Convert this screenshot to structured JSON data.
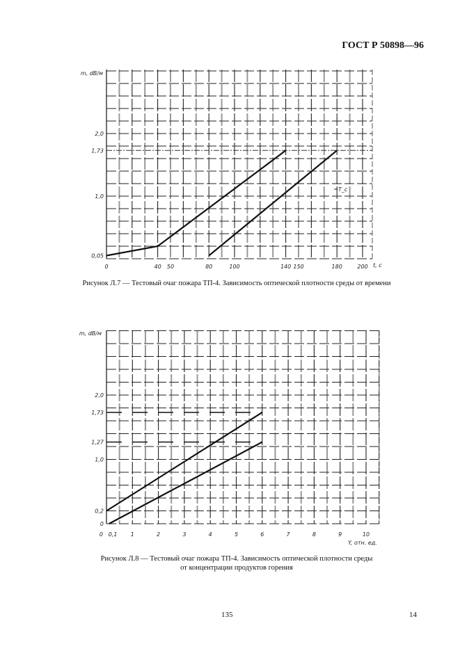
{
  "header": {
    "standard": "ГОСТ Р 50898—96"
  },
  "footer": {
    "page_number": "135",
    "sheet_number": "14"
  },
  "chart_data": [
    {
      "type": "line",
      "title": "",
      "caption": "Рисунок Л.7 — Тестовый очаг пожара ТП-4. Зависимость оптической плотности среды от времени",
      "xlabel": "t, c",
      "ylabel": "m, dB/м",
      "xlim": [
        0,
        210
      ],
      "ylim": [
        0,
        3.07
      ],
      "x_ticks": [
        "0",
        "40",
        "50",
        "80",
        "100",
        "140",
        "150",
        "180",
        "200"
      ],
      "x_tick_values": [
        0,
        40,
        50,
        80,
        100,
        140,
        150,
        180,
        200
      ],
      "y_ticks": [
        "0,05",
        "1,0",
        "1,73",
        "2,0"
      ],
      "y_tick_values": [
        0.05,
        1.0,
        1.73,
        2.0
      ],
      "grid": true,
      "reference_line": {
        "y": 1.73,
        "style": "dash-dot"
      },
      "annotation": "T_c",
      "series": [
        {
          "x": [
            0,
            40,
            140
          ],
          "y": [
            0.05,
            0.2,
            1.73
          ]
        },
        {
          "x": [
            80,
            180
          ],
          "y": [
            0.05,
            1.73
          ]
        }
      ]
    },
    {
      "type": "line",
      "title": "",
      "caption": [
        "Рисунок Л.8 — Тестовый очаг пожара ТП-4. Зависимость оптической плотности среды",
        "от концентрации продуктов горения"
      ],
      "xlabel": "Y, отн. ед.",
      "ylabel": "m, dB/м",
      "xlim": [
        0,
        10.5
      ],
      "ylim": [
        0,
        3.0
      ],
      "x_ticks": [
        "0",
        "0,1",
        "1",
        "2",
        "3",
        "4",
        "5",
        "6",
        "7",
        "8",
        "9",
        "10"
      ],
      "x_tick_values": [
        0,
        0.1,
        1,
        2,
        3,
        4,
        5,
        6,
        7,
        8,
        9,
        10
      ],
      "y_ticks": [
        "0",
        "0,2",
        "1,0",
        "1,27",
        "1,73",
        "2,0"
      ],
      "y_tick_values": [
        0,
        0.2,
        1.0,
        1.27,
        1.73,
        2.0
      ],
      "grid": true,
      "reference_lines": [
        {
          "y": 1.73,
          "style": "dashed"
        },
        {
          "y": 1.27,
          "style": "dashed"
        }
      ],
      "series": [
        {
          "x": [
            0,
            6
          ],
          "y": [
            0.2,
            1.73
          ]
        },
        {
          "x": [
            0.1,
            6
          ],
          "y": [
            0,
            1.27
          ]
        }
      ]
    }
  ]
}
